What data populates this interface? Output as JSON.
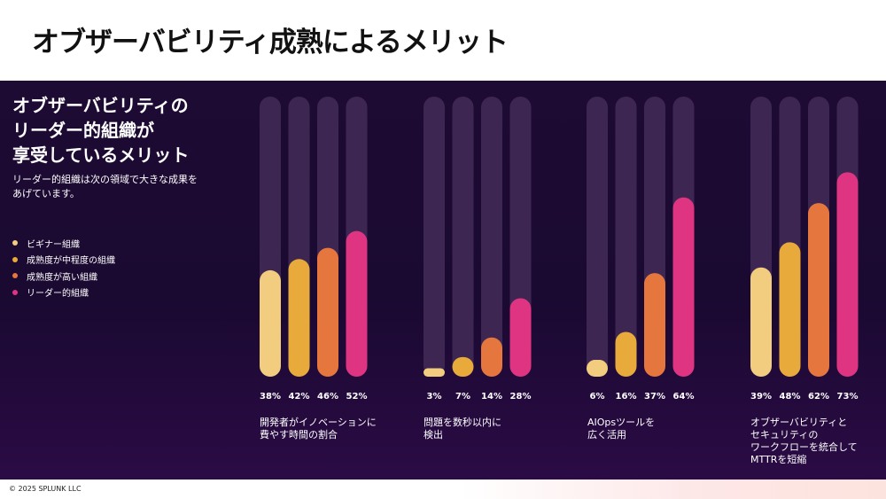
{
  "page_title": "オブザーバビリティ成熟によるメリット",
  "panel": {
    "heading_lines": [
      "オブザーバビリティの",
      "リーダー的組織が",
      "享受しているメリット"
    ],
    "subtext_lines": [
      "リーダー的組織は次の領域で大きな成果を",
      "あげています。"
    ]
  },
  "legend": [
    {
      "label": "ビギナー組織",
      "color": "#f3cd7f"
    },
    {
      "label": "成熟度が中程度の組織",
      "color": "#e9aa3c"
    },
    {
      "label": "成熟度が高い組織",
      "color": "#e5773e"
    },
    {
      "label": "リーダー的組織",
      "color": "#de3481"
    }
  ],
  "chart_data": {
    "type": "bar",
    "value_unit": "%",
    "ylim": [
      0,
      100
    ],
    "series_colors": [
      "#f3cd7f",
      "#e9aa3c",
      "#e5773e",
      "#de3481"
    ],
    "track_color": "#3d2752",
    "series": [
      {
        "name": "ビギナー組織",
        "values": [
          38,
          3,
          6,
          39
        ]
      },
      {
        "name": "成熟度が中程度の組織",
        "values": [
          42,
          7,
          16,
          48
        ]
      },
      {
        "name": "成熟度が高い組織",
        "values": [
          46,
          14,
          37,
          62
        ]
      },
      {
        "name": "リーダー的組織",
        "values": [
          52,
          28,
          64,
          73
        ]
      }
    ],
    "groups": [
      {
        "label_lines": [
          "開発者がイノベーションに",
          "費やす時間の割合"
        ],
        "labels": [
          "38%",
          "42%",
          "46%",
          "52%"
        ]
      },
      {
        "label_lines": [
          "問題を数秒以内に",
          "検出"
        ],
        "labels": [
          "3%",
          "7%",
          "14%",
          "28%"
        ]
      },
      {
        "label_lines": [
          "AIOpsツールを",
          "広く活用"
        ],
        "labels": [
          "6%",
          "16%",
          "37%",
          "64%"
        ]
      },
      {
        "label_lines": [
          "オブザーバビリティと",
          "セキュリティの",
          "ワークフローを統合して",
          "MTTRを短縮"
        ],
        "labels": [
          "39%",
          "48%",
          "62%",
          "73%"
        ]
      }
    ]
  },
  "footer": "© 2025 SPLUNK LLC"
}
